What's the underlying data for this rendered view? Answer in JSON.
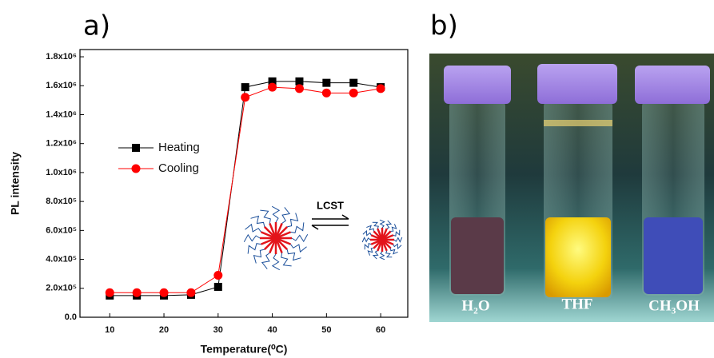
{
  "panels": {
    "a": "a)",
    "b": "b)"
  },
  "photo": {
    "labels": [
      "H₂O",
      "THF",
      "CH₃OH"
    ]
  },
  "chart_data": {
    "type": "line",
    "xlabel": "Temperature(⁰C)",
    "ylabel": "PL intensity",
    "annotation": "LCST",
    "x": [
      10,
      15,
      20,
      25,
      30,
      35,
      40,
      45,
      50,
      55,
      60
    ],
    "series": [
      {
        "name": "Heating",
        "color": "#000000",
        "marker": "square",
        "values": [
          150000,
          150000,
          150000,
          155000,
          210000,
          1590000,
          1630000,
          1630000,
          1620000,
          1620000,
          1590000
        ]
      },
      {
        "name": "Cooling",
        "color": "#ff0000",
        "marker": "circle",
        "values": [
          170000,
          170000,
          170000,
          170000,
          290000,
          1520000,
          1590000,
          1580000,
          1550000,
          1550000,
          1580000
        ]
      }
    ],
    "xlim": [
      4.5,
      65
    ],
    "xticks": [
      10,
      20,
      30,
      40,
      50,
      60
    ],
    "ylim": [
      0,
      1850000
    ],
    "yticks": [
      {
        "value": 0,
        "label": "0.0"
      },
      {
        "value": 200000,
        "label": "2.0x10⁵"
      },
      {
        "value": 400000,
        "label": "4.0x10⁵"
      },
      {
        "value": 600000,
        "label": "6.0x10⁵"
      },
      {
        "value": 800000,
        "label": "8.0x10⁵"
      },
      {
        "value": 1000000,
        "label": "1.0x10⁶"
      },
      {
        "value": 1200000,
        "label": "1.2x10⁶"
      },
      {
        "value": 1400000,
        "label": "1.4x10⁶"
      },
      {
        "value": 1600000,
        "label": "1.6x10⁶"
      },
      {
        "value": 1800000,
        "label": "1.8x10⁶"
      }
    ],
    "legend": "left"
  }
}
